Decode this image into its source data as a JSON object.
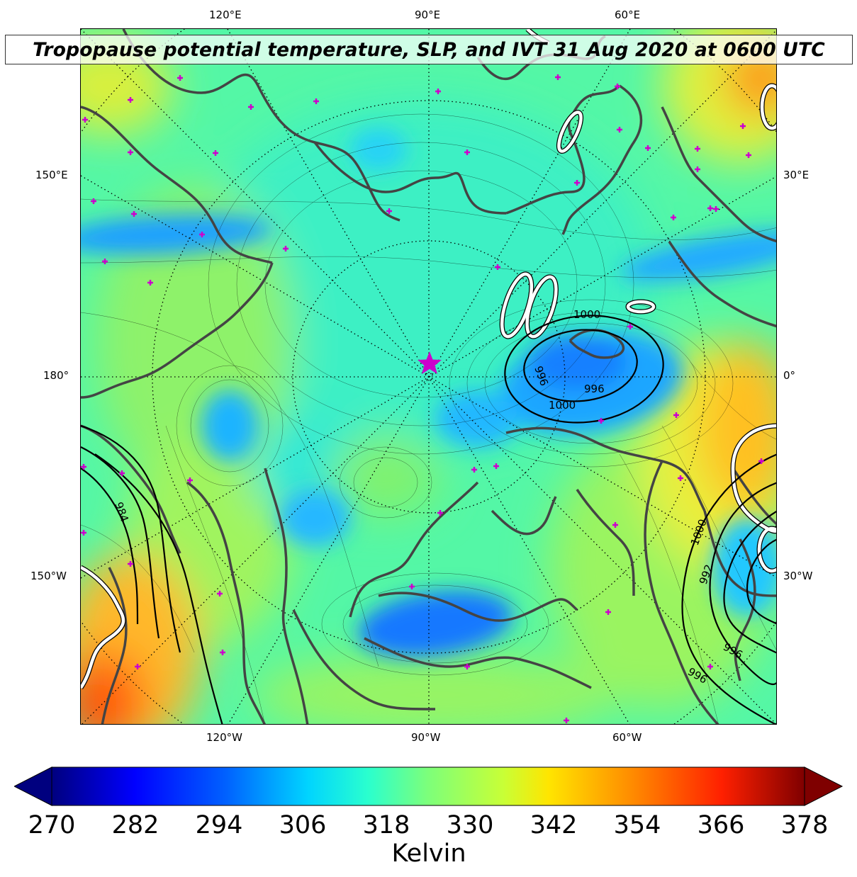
{
  "title": "Tropopause potential temperature, SLP, and IVT 31 Aug 2020 at 0600 UTC",
  "map": {
    "projection": "north-polar-stereographic",
    "fill_field": "Tropopause potential temperature",
    "contour_fields": [
      "SLP",
      "IVT"
    ],
    "center_marker": "magenta-star",
    "longitude_labels_top": [
      "120°E",
      "90°E",
      "60°E"
    ],
    "longitude_labels_bottom": [
      "120°W",
      "90°W",
      "60°W"
    ],
    "longitude_labels_left": [
      "150°E",
      "180°",
      "150°W"
    ],
    "longitude_labels_right": [
      "30°E",
      "0°",
      "30°W"
    ],
    "slp_contour_labels": [
      "1000",
      "996",
      "996",
      "1000",
      "984",
      "1000",
      "992",
      "996",
      "996"
    ],
    "slp_contour_color": "#000000",
    "ivt_contour_color": "#ffffff",
    "coastline_color": "#404040",
    "marker_color": "#cc00cc"
  },
  "colorbar": {
    "label": "Kelvin",
    "ticks": [
      "270",
      "282",
      "294",
      "306",
      "318",
      "330",
      "342",
      "354",
      "366",
      "378"
    ],
    "min": 270,
    "max": 378,
    "extend": "both",
    "colormap": "jet"
  }
}
